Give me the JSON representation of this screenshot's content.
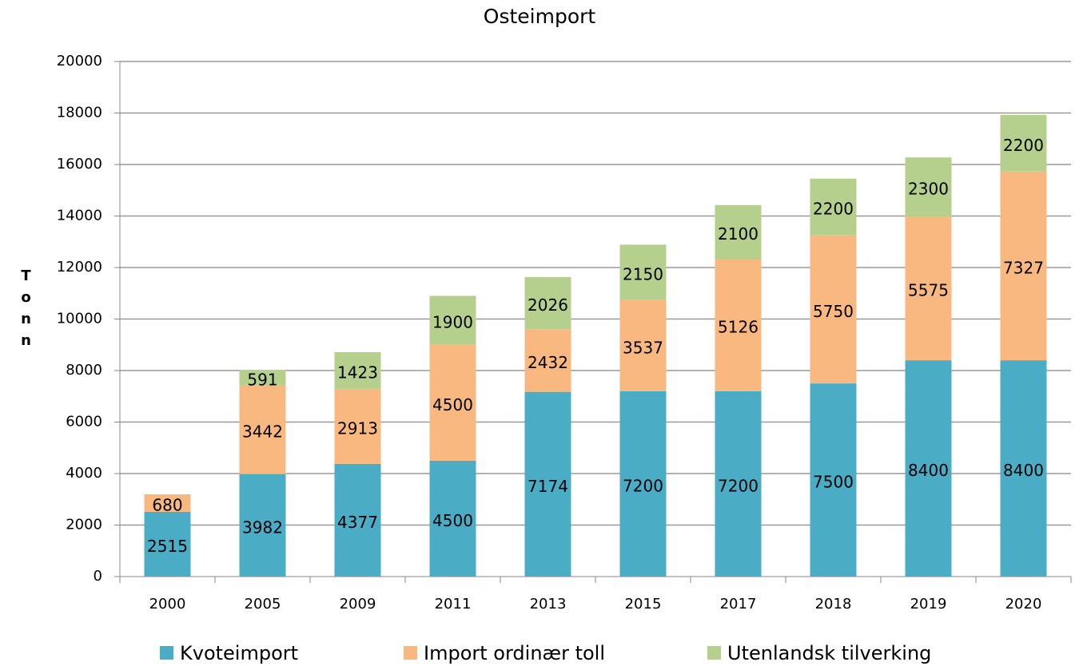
{
  "chart_data": {
    "type": "bar",
    "stacked": true,
    "title": "Osteimport",
    "y_label": "Tonn",
    "categories": [
      "2000",
      "2005",
      "2009",
      "2011",
      "2013",
      "2015",
      "2017",
      "2018",
      "2019",
      "2020"
    ],
    "series": [
      {
        "name": "Kvoteimport",
        "color": "#4bacc6",
        "values": [
          2515,
          3982,
          4377,
          4500,
          7174,
          7200,
          7200,
          7500,
          8400,
          8400
        ]
      },
      {
        "name": "Import ordinær toll",
        "color": "#f9b880",
        "values": [
          680,
          3442,
          2913,
          4500,
          2432,
          3537,
          5126,
          5750,
          5575,
          7327
        ]
      },
      {
        "name": "Utenlandsk tilverking",
        "color": "#b5d08c",
        "values": [
          null,
          591,
          1423,
          1900,
          2026,
          2150,
          2100,
          2200,
          2300,
          2200
        ]
      }
    ],
    "ylim": [
      0,
      20000
    ],
    "yticks": [
      0,
      2000,
      4000,
      6000,
      8000,
      10000,
      12000,
      14000,
      16000,
      18000,
      20000
    ],
    "grid": true,
    "legend": "bottom"
  }
}
